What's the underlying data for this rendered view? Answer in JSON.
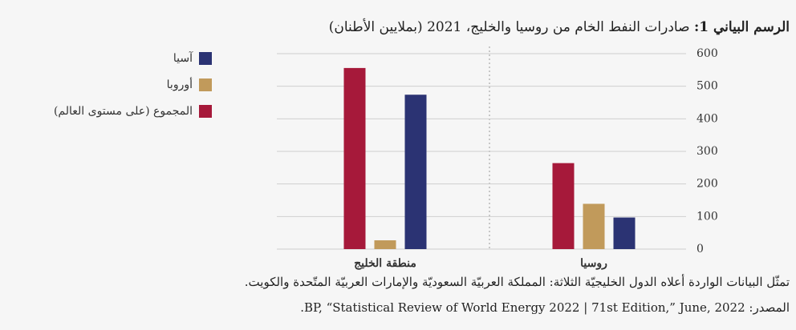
{
  "chart_data": {
    "type": "bar",
    "title_label": "الرسم البياني 1:",
    "title": "صادرات النفط الخام من روسيا والخليج، 2021 (بملايين الأطنان)",
    "categories": [
      "روسيا",
      "منطقة الخليج"
    ],
    "series": [
      {
        "name": "آسيا",
        "color": "#2b3373",
        "values": [
          97,
          474
        ]
      },
      {
        "name": "أوروبا",
        "color": "#c19a5b",
        "values": [
          139,
          27
        ]
      },
      {
        "name": "المجموع (على مستوى العالم)",
        "color": "#a6193a",
        "values": [
          264,
          556
        ]
      }
    ],
    "ylim": [
      0,
      600
    ],
    "yticks": [
      0,
      100,
      200,
      300,
      400,
      500,
      600
    ],
    "grid": true,
    "legend": "top-left",
    "note": "تمثّل البيانات الواردة أعلاه الدول الخليجيّة الثلاثة: المملكة العربيّة السعوديّة والإمارات العربيّة المتّحدة والكويت.",
    "source": "المصدر: BP, “Statistical Review of World Energy 2022 | 71st Edition,” June, 2022."
  }
}
